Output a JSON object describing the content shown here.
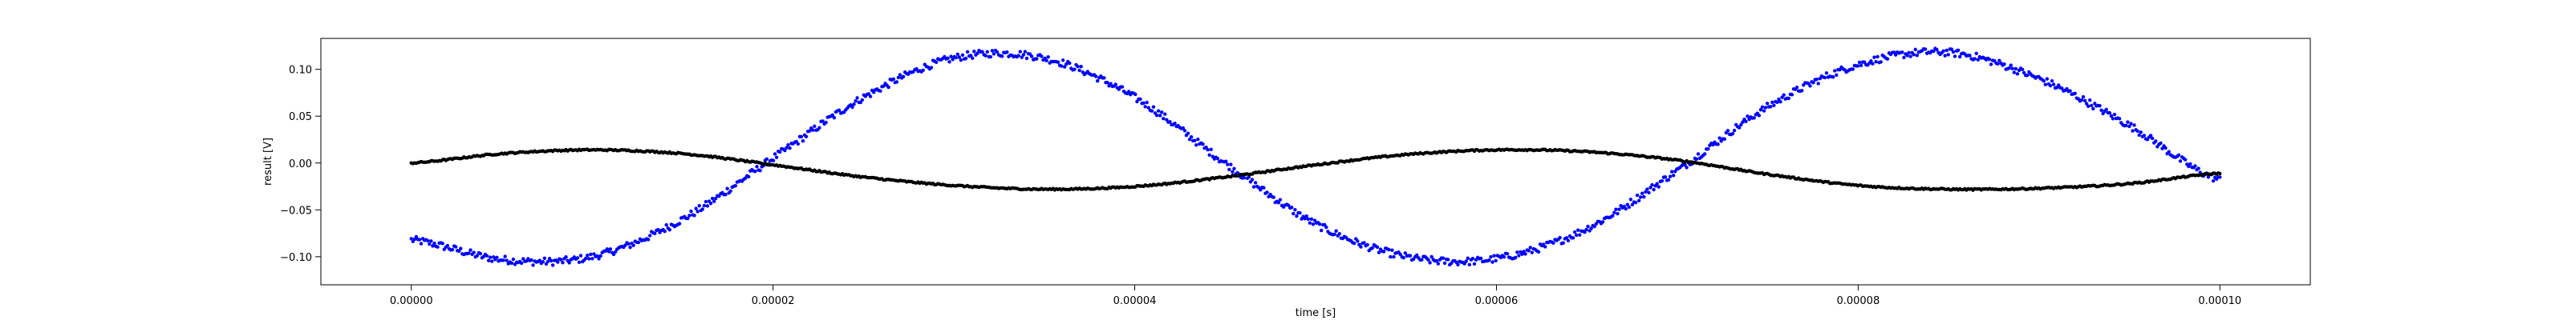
{
  "chart_data": {
    "type": "scatter",
    "title": "",
    "xlabel": "time [s]",
    "ylabel": "result [V]",
    "xlim": [
      -5e-06,
      0.000105
    ],
    "ylim": [
      -0.13,
      0.133
    ],
    "xticks": [
      0.0,
      2e-05,
      4e-05,
      6e-05,
      8e-05,
      0.0001
    ],
    "xtick_labels": [
      "0.00000",
      "0.00002",
      "0.00004",
      "0.00006",
      "0.00008",
      "0.00010"
    ],
    "yticks": [
      -0.1,
      -0.05,
      0.0,
      0.05,
      0.1
    ],
    "ytick_labels": [
      "−0.10",
      "−0.05",
      "0.00",
      "0.05",
      "0.10"
    ],
    "grid": false,
    "series": [
      {
        "color": "#0000ff",
        "points_sample": 1100,
        "x_start": 0.0,
        "x_end": 0.0001,
        "curve": {
          "x": [
            0.0,
            5e-06,
            1e-05,
            1.5e-05,
            2e-05,
            2.5e-05,
            3e-05,
            3.5e-05,
            4e-05,
            4.5e-05,
            5e-05,
            5.5e-05,
            6e-05,
            6.5e-05,
            7e-05,
            7.5e-05,
            8e-05,
            8.5e-05,
            9e-05,
            9.5e-05,
            0.0001
          ],
          "y": [
            -0.082,
            -0.103,
            -0.1,
            -0.06,
            0.005,
            0.07,
            0.112,
            0.112,
            0.07,
            0.0,
            -0.065,
            -0.1,
            -0.102,
            -0.07,
            -0.008,
            0.06,
            0.105,
            0.118,
            0.09,
            0.04,
            -0.018
          ]
        },
        "noise": 0.004
      },
      {
        "color": "#000000",
        "points_sample": 1100,
        "x_start": 0.0,
        "x_end": 0.0001,
        "curve": {
          "x": [
            0.0,
            5e-06,
            1e-05,
            1.5e-05,
            2e-05,
            2.5e-05,
            3e-05,
            3.5e-05,
            4e-05,
            4.5e-05,
            5e-05,
            5.5e-05,
            6e-05,
            6.5e-05,
            7e-05,
            7.5e-05,
            8e-05,
            8.5e-05,
            9e-05,
            9.5e-05,
            0.0001
          ],
          "y": [
            0.0,
            0.01,
            0.014,
            0.01,
            -0.002,
            -0.015,
            -0.024,
            -0.028,
            -0.025,
            -0.015,
            -0.002,
            0.009,
            0.014,
            0.012,
            0.003,
            -0.012,
            -0.024,
            -0.028,
            -0.027,
            -0.022,
            -0.011
          ]
        },
        "noise": 0.0008
      }
    ]
  }
}
